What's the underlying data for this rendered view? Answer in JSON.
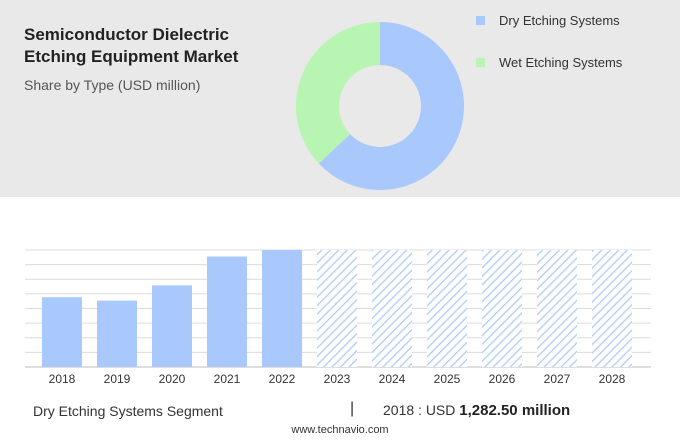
{
  "header": {
    "title": "Semiconductor Dielectric Etching Equipment Market",
    "subtitle": "Share by Type (USD million)"
  },
  "chart_data": [
    {
      "type": "pie",
      "variant": "donut",
      "title": "Share by Type (USD million)",
      "legend_position": "top-right",
      "slices": [
        {
          "label": "Dry Etching Systems",
          "value": 63,
          "color": "#a9c8fb"
        },
        {
          "label": "Wet Etching Systems",
          "value": 37,
          "color": "#b9f5b2"
        }
      ]
    },
    {
      "type": "bar",
      "categories": [
        "2018",
        "2019",
        "2020",
        "2021",
        "2022",
        "2023",
        "2024",
        "2025",
        "2026",
        "2027",
        "2028"
      ],
      "values": [
        1282.5,
        1220,
        1500,
        2030,
        2150,
        2150,
        2150,
        2150,
        2150,
        2150,
        2150
      ],
      "forecast_from": "2023",
      "ylim": [
        0,
        2150
      ],
      "grid": true,
      "colors": {
        "actual": "#a9c8fb",
        "forecast_hatch": "#a9c8fb"
      }
    }
  ],
  "footer": {
    "segment": "Dry Etching Systems Segment",
    "separator": "|",
    "year_label": "2018 : USD",
    "value": "1,282.50 million",
    "source": "www.technavio.com"
  }
}
